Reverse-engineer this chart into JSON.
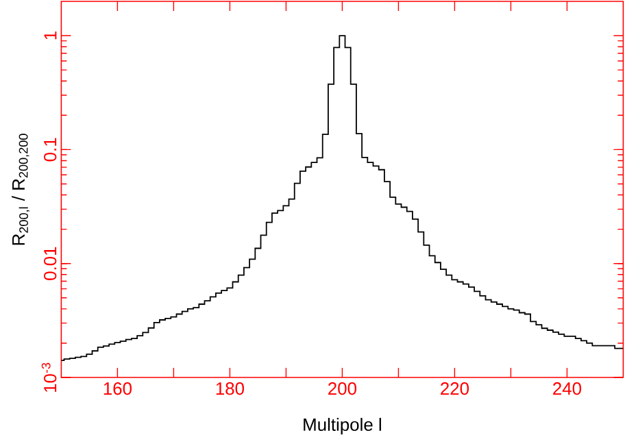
{
  "chart_data": {
    "type": "step",
    "xlabel": "Multipole l",
    "ylabel": "R$_{200,l}$ / R$_{200,200}$",
    "log": "y",
    "grid": false,
    "xlim": [
      150,
      250
    ],
    "ylim": [
      0.001,
      2
    ],
    "xticks": [
      {
        "value": 160,
        "label": "160"
      },
      {
        "value": 170,
        "label": null
      },
      {
        "value": 180,
        "label": "180"
      },
      {
        "value": 190,
        "label": null
      },
      {
        "value": 200,
        "label": "200"
      },
      {
        "value": 210,
        "label": null
      },
      {
        "value": 220,
        "label": "220"
      },
      {
        "value": 230,
        "label": null
      },
      {
        "value": 240,
        "label": "240"
      }
    ],
    "yticks": [
      {
        "value": 0.001,
        "label": "10$^{-3}$"
      },
      {
        "value": 0.01,
        "label": "0.01"
      },
      {
        "value": 0.1,
        "label": "0.1"
      },
      {
        "value": 1,
        "label": "1"
      }
    ],
    "x": [
      150,
      151,
      152,
      153,
      154,
      155,
      156,
      157,
      158,
      159,
      160,
      161,
      162,
      163,
      164,
      165,
      166,
      167,
      168,
      169,
      170,
      171,
      172,
      173,
      174,
      175,
      176,
      177,
      178,
      179,
      180,
      181,
      182,
      183,
      184,
      185,
      186,
      187,
      188,
      189,
      190,
      191,
      192,
      193,
      194,
      195,
      196,
      197,
      198,
      199,
      200,
      201,
      202,
      203,
      204,
      205,
      206,
      207,
      208,
      209,
      210,
      211,
      212,
      213,
      214,
      215,
      216,
      217,
      218,
      219,
      220,
      221,
      222,
      223,
      224,
      225,
      226,
      227,
      228,
      229,
      230,
      231,
      232,
      233,
      234,
      235,
      236,
      237,
      238,
      239,
      240,
      241,
      242,
      243,
      244,
      245,
      246,
      247,
      248,
      249,
      250
    ],
    "series": [
      {
        "color": "#000000",
        "values": [
          0.00141,
          0.00145,
          0.00147,
          0.0015,
          0.00153,
          0.0016,
          0.00171,
          0.00184,
          0.00189,
          0.00196,
          0.00202,
          0.00208,
          0.00215,
          0.0022,
          0.00232,
          0.00248,
          0.00272,
          0.00303,
          0.0032,
          0.0033,
          0.0034,
          0.0036,
          0.0038,
          0.004,
          0.0041,
          0.0044,
          0.0047,
          0.0051,
          0.0055,
          0.0058,
          0.0061,
          0.0069,
          0.0079,
          0.0092,
          0.0109,
          0.0136,
          0.0177,
          0.023,
          0.0277,
          0.0292,
          0.0321,
          0.0368,
          0.0505,
          0.0647,
          0.0704,
          0.0772,
          0.0847,
          0.136,
          0.375,
          0.786,
          1,
          0.786,
          0.375,
          0.138,
          0.0854,
          0.0772,
          0.0717,
          0.0666,
          0.0524,
          0.0382,
          0.0333,
          0.0312,
          0.0287,
          0.0245,
          0.0189,
          0.0145,
          0.0117,
          0.0102,
          0.0089,
          0.0079,
          0.0072,
          0.0069,
          0.0066,
          0.0062,
          0.0057,
          0.0052,
          0.0048,
          0.0046,
          0.0044,
          0.0042,
          0.004,
          0.0039,
          0.0037,
          0.0036,
          0.0031,
          0.0029,
          0.0027,
          0.0026,
          0.0025,
          0.0024,
          0.0023,
          0.0023,
          0.0022,
          0.0021,
          0.002,
          0.0019,
          0.0019,
          0.0019,
          0.0019,
          0.0018,
          0.0018
        ]
      }
    ]
  }
}
